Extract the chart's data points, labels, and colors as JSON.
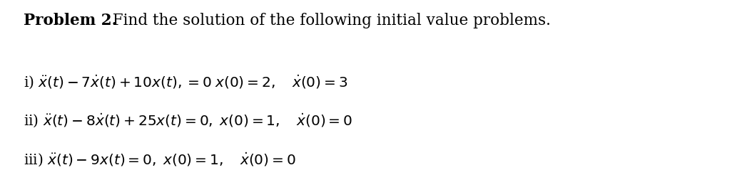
{
  "title_bold": "Problem 2.",
  "title_regular": " Find the solution of the following initial value problems.",
  "line1": "i) $\\ddot{x}(t) - 7\\dot{x}(t) + 10x(t), = 0 \\; x(0) = 2, \\quad \\dot{x}(0) = 3$",
  "line2": "ii) $\\ddot{x}(t) - 8\\dot{x}(t) + 25x(t) = 0, \\; x(0) = 1, \\quad \\dot{x}(0) = 0$",
  "line3": "iii) $\\ddot{x}(t) - 9x(t) = 0, \\; x(0) = 1, \\quad \\dot{x}(0) = 0$",
  "background_color": "#ffffff",
  "text_color": "#000000",
  "title_fontsize": 15.5,
  "body_fontsize": 14.5,
  "fig_width": 10.54,
  "fig_height": 2.46,
  "dpi": 100
}
